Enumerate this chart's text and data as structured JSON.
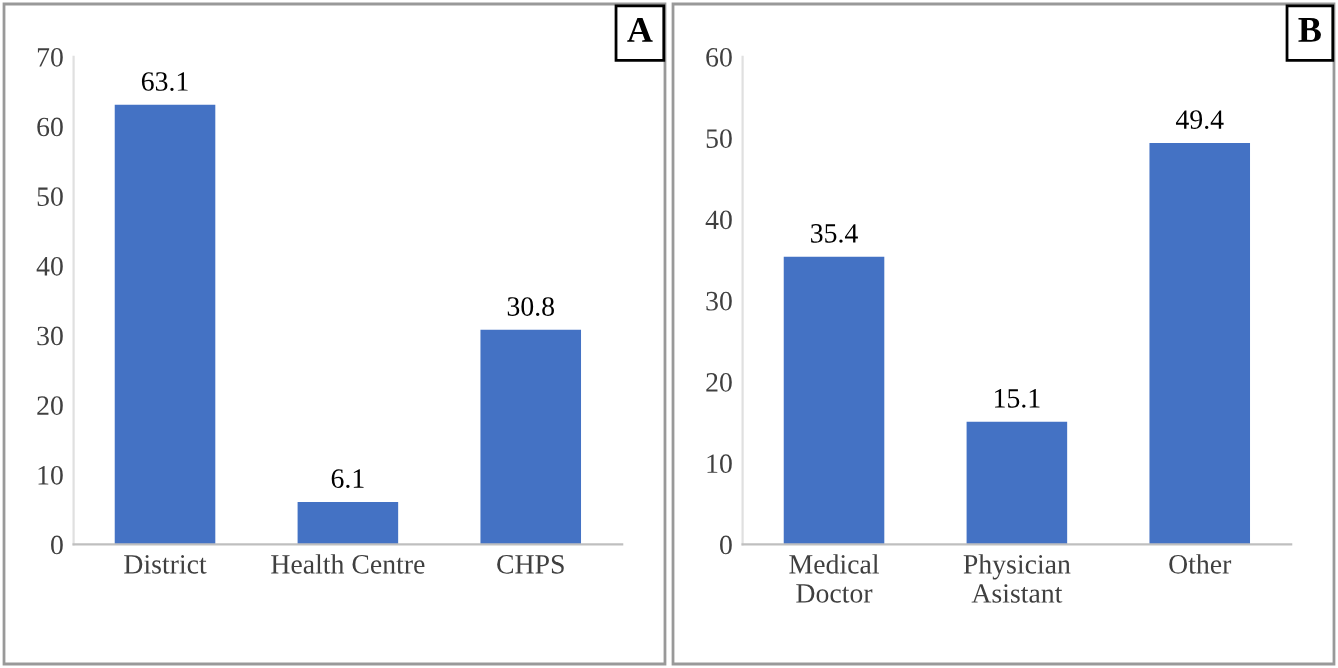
{
  "chart_data": [
    {
      "type": "bar",
      "categories": [
        "District",
        "Health Centre",
        "CHPS"
      ],
      "values": [
        63.1,
        6.1,
        30.8
      ],
      "color": "#4472c4",
      "ylim": [
        0,
        70
      ],
      "yticks": [
        0,
        10,
        20,
        30,
        40,
        50,
        60,
        70
      ],
      "data_labels": true,
      "grid": false,
      "legend": false,
      "annotations": [
        "A"
      ]
    },
    {
      "type": "bar",
      "categories": [
        "Medical\nDoctor",
        "Physician\nAsistant",
        "Other"
      ],
      "values": [
        35.4,
        15.1,
        49.4
      ],
      "color": "#4472c4",
      "ylim": [
        0,
        60
      ],
      "yticks": [
        0,
        10,
        20,
        30,
        40,
        50,
        60
      ],
      "data_labels": true,
      "grid": false,
      "legend": false,
      "annotations": [
        "B"
      ]
    }
  ]
}
